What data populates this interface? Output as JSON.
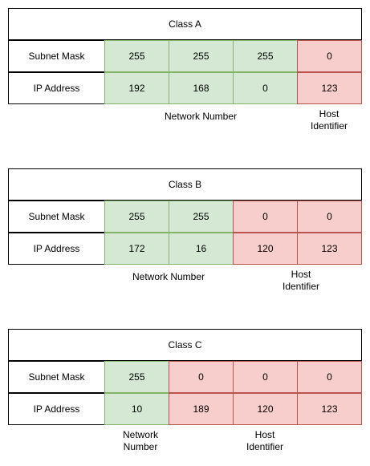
{
  "classes": [
    {
      "title": "Class A",
      "subnet_label": "Subnet Mask",
      "ip_label": "IP Address",
      "subnet": [
        "255",
        "255",
        "255",
        "0"
      ],
      "ip": [
        "192",
        "168",
        "0",
        "123"
      ],
      "network_caption": "Network Number",
      "host_caption": "Host\nIdentifier"
    },
    {
      "title": "Class B",
      "subnet_label": "Subnet Mask",
      "ip_label": "IP Address",
      "subnet": [
        "255",
        "255",
        "0",
        "0"
      ],
      "ip": [
        "172",
        "16",
        "120",
        "123"
      ],
      "network_caption": "Network Number",
      "host_caption": "Host\nIdentifier"
    },
    {
      "title": "Class C",
      "subnet_label": "Subnet Mask",
      "ip_label": "IP Address",
      "subnet": [
        "255",
        "0",
        "0",
        "0"
      ],
      "ip": [
        "10",
        "189",
        "120",
        "123"
      ],
      "network_caption": "Network\nNumber",
      "host_caption": "Host\nIdentifier"
    }
  ],
  "colors": {
    "network_fill": "#d5e8d4",
    "network_stroke": "#82b366",
    "host_fill": "#f8cecc",
    "host_stroke": "#b85450"
  }
}
